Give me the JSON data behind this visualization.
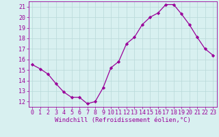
{
  "x": [
    0,
    1,
    2,
    3,
    4,
    5,
    6,
    7,
    8,
    9,
    10,
    11,
    12,
    13,
    14,
    15,
    16,
    17,
    18,
    19,
    20,
    21,
    22,
    23
  ],
  "y": [
    15.5,
    15.1,
    14.6,
    13.7,
    12.9,
    12.4,
    12.4,
    11.8,
    12.0,
    13.3,
    15.2,
    15.8,
    17.5,
    18.1,
    19.3,
    20.0,
    20.4,
    21.2,
    21.2,
    20.3,
    19.3,
    18.1,
    17.0,
    16.4
  ],
  "line_color": "#990099",
  "marker": "D",
  "marker_size": 2.2,
  "bg_color": "#d8f0f0",
  "grid_color": "#b8d8d8",
  "xlabel": "Windchill (Refroidissement éolien,°C)",
  "ylabel_ticks": [
    12,
    13,
    14,
    15,
    16,
    17,
    18,
    19,
    20,
    21
  ],
  "xlim": [
    -0.5,
    23.5
  ],
  "ylim": [
    11.5,
    21.5
  ],
  "xlabel_fontsize": 6.5,
  "tick_fontsize": 6.0,
  "label_color": "#990099"
}
